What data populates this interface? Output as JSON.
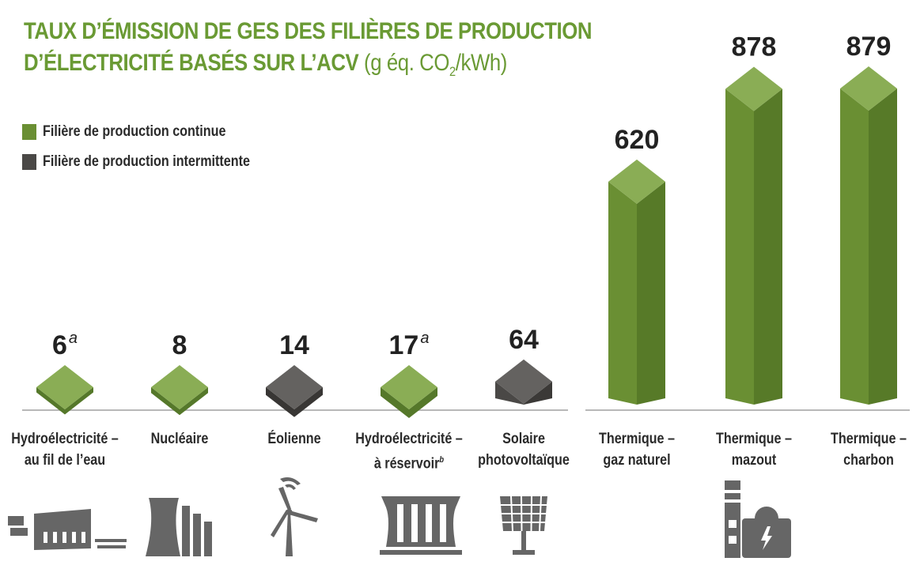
{
  "title": {
    "line1": "TAUX D’ÉMISSION DE GES DES FILIÈRES DE PRODUCTION",
    "line2": "D’ÉLECTRICITÉ BASÉS SUR L’ACV",
    "unit_prefix": "(g éq. CO",
    "unit_sub": "2",
    "unit_suffix": "/kWh)"
  },
  "legend": {
    "continuous": {
      "label": "Filière de production continue",
      "color": "#6a8f33"
    },
    "intermittent": {
      "label": "Filière de production intermittente",
      "color": "#4a4846"
    }
  },
  "chart_data": {
    "type": "bar",
    "title": "TAUX D’ÉMISSION DE GES DES FILIÈRES DE PRODUCTION D’ÉLECTRICITÉ BASÉS SUR L’ACV (g éq. CO2/kWh)",
    "xlabel": "",
    "ylabel": "",
    "legend_position": "top-left",
    "grid": false,
    "ylim": [
      0,
      879
    ],
    "categories": [
      "Hydroélectricité – au fil de l’eau",
      "Nucléaire",
      "Éolienne",
      "Hydroélectricité – à réservoir",
      "Solaire photovoltaïque",
      "Thermique – gaz naturel",
      "Thermique – mazout",
      "Thermique – charbon"
    ],
    "bars": [
      {
        "line1": "Hydroélectricité –",
        "line2": "au fil de l’eau",
        "note": "",
        "value": 6,
        "value_label": "6",
        "sup": "a",
        "type": "continue",
        "icon": "run-of-river-hydro-icon"
      },
      {
        "line1": "Nucléaire",
        "line2": "",
        "note": "",
        "value": 8,
        "value_label": "8",
        "sup": "",
        "type": "continue",
        "icon": "nuclear-plant-icon"
      },
      {
        "line1": "Éolienne",
        "line2": "",
        "note": "",
        "value": 14,
        "value_label": "14",
        "sup": "",
        "type": "intermittente",
        "icon": "wind-turbine-icon"
      },
      {
        "line1": "Hydroélectricité –",
        "line2": "à réservoir",
        "note": "b",
        "value": 17,
        "value_label": "17",
        "sup": "a",
        "type": "continue",
        "icon": "reservoir-dam-icon"
      },
      {
        "line1": "Solaire",
        "line2": "photovoltaïque",
        "note": "",
        "value": 64,
        "value_label": "64",
        "sup": "",
        "type": "intermittente",
        "icon": "solar-panel-icon"
      },
      {
        "line1": "Thermique –",
        "line2": "gaz naturel",
        "note": "",
        "value": 620,
        "value_label": "620",
        "sup": "",
        "type": "continue",
        "icon": ""
      },
      {
        "line1": "Thermique –",
        "line2": "mazout",
        "note": "",
        "value": 878,
        "value_label": "878",
        "sup": "",
        "type": "continue",
        "icon": "thermal-plant-icon"
      },
      {
        "line1": "Thermique –",
        "line2": "charbon",
        "note": "",
        "value": 879,
        "value_label": "879",
        "sup": "",
        "type": "continue",
        "icon": ""
      }
    ]
  }
}
